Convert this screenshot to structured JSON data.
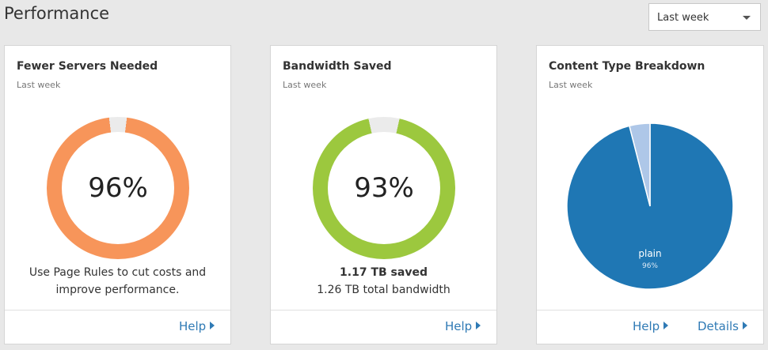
{
  "page": {
    "title": "Performance"
  },
  "range_select": {
    "value": "Last week"
  },
  "cards": {
    "servers": {
      "title": "Fewer Servers Needed",
      "subtitle": "Last week",
      "percent_value": 96,
      "percent_label": "96%",
      "text_line1": "Use Page Rules to cut costs and",
      "text_line2": "improve performance.",
      "help": "Help",
      "colors": {
        "fill": "#f7955a",
        "track": "#ebebeb"
      }
    },
    "bandwidth": {
      "title": "Bandwidth Saved",
      "subtitle": "Last week",
      "percent_value": 93,
      "percent_label": "93%",
      "saved": "1.17 TB saved",
      "total": "1.26 TB total bandwidth",
      "help": "Help",
      "colors": {
        "fill": "#9cc83e",
        "track": "#ebebeb"
      }
    },
    "content": {
      "title": "Content Type Breakdown",
      "subtitle": "Last week",
      "help": "Help",
      "details": "Details",
      "chart_data": {
        "type": "pie",
        "slices": [
          {
            "name": "plain",
            "value": 96,
            "label": "96%",
            "color": "#1f77b4"
          },
          {
            "name": "",
            "value": 4,
            "label": "",
            "color": "#aec7e8"
          }
        ]
      }
    }
  },
  "icons": {
    "dropdown": "chevron-down-icon",
    "link": "caret-right-icon"
  }
}
